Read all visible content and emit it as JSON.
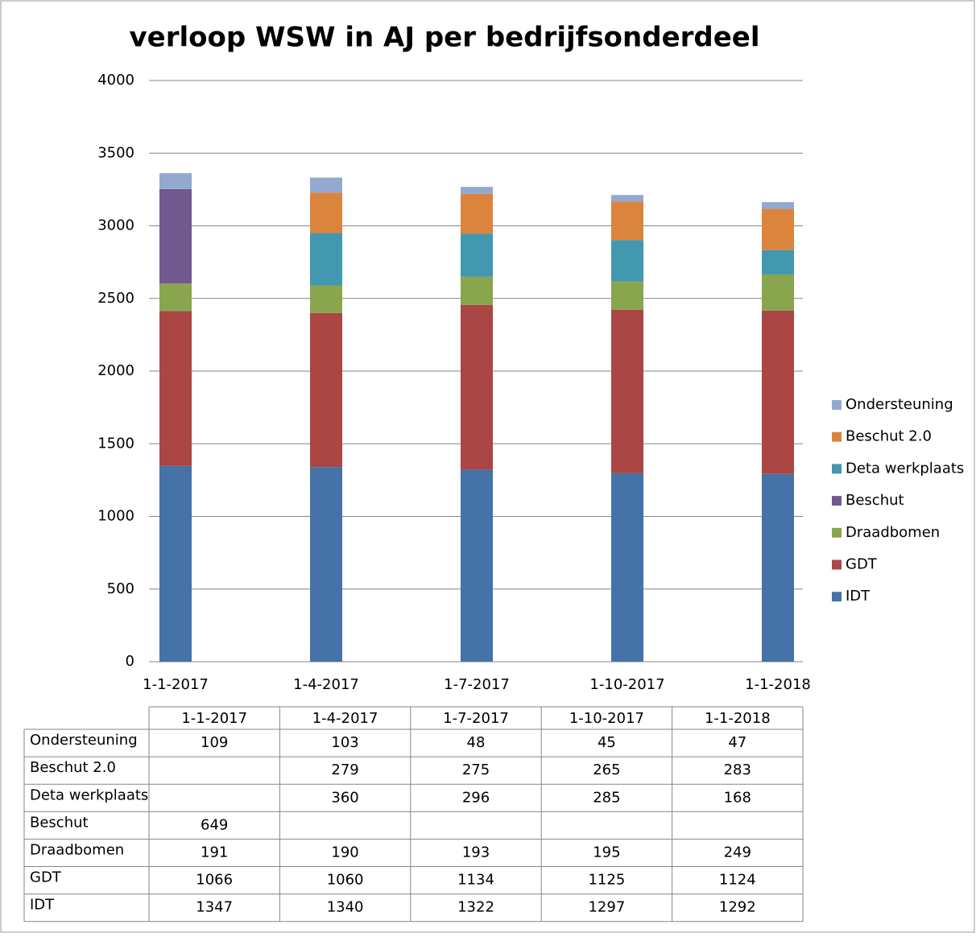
{
  "chart_data": {
    "type": "bar",
    "stacked": true,
    "title": "verloop WSW in AJ per bedrijfsonderdeel",
    "categories": [
      "1-1-2017",
      "1-4-2017",
      "1-7-2017",
      "1-10-2017",
      "1-1-2018"
    ],
    "series": [
      {
        "name": "IDT",
        "color": "#4572a7",
        "values": [
          1347,
          1340,
          1322,
          1297,
          1292
        ]
      },
      {
        "name": "GDT",
        "color": "#aa4643",
        "values": [
          1066,
          1060,
          1134,
          1125,
          1124
        ]
      },
      {
        "name": "Draadbomen",
        "color": "#89a54e",
        "values": [
          191,
          190,
          193,
          195,
          249
        ]
      },
      {
        "name": "Beschut",
        "color": "#71588f",
        "values": [
          649,
          null,
          null,
          null,
          null
        ]
      },
      {
        "name": "Deta werkplaats",
        "color": "#4198af",
        "values": [
          null,
          360,
          296,
          285,
          168
        ]
      },
      {
        "name": "Beschut 2.0",
        "color": "#db843d",
        "values": [
          null,
          279,
          275,
          265,
          283
        ]
      },
      {
        "name": "Ondersteuning",
        "color": "#93a9cf",
        "values": [
          109,
          103,
          48,
          45,
          47
        ]
      }
    ],
    "ylim": [
      0,
      4000
    ],
    "yticks": [
      0,
      500,
      1000,
      1500,
      2000,
      2500,
      3000,
      3500,
      4000
    ],
    "grid": true,
    "legend": "right",
    "data_table": true
  }
}
